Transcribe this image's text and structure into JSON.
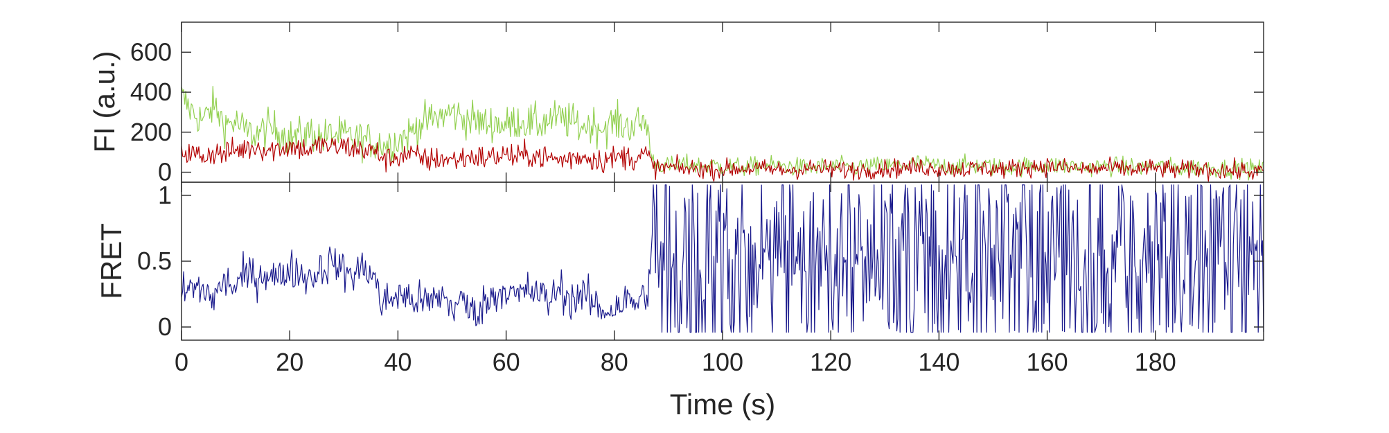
{
  "chart_data": [
    {
      "type": "line",
      "title": "",
      "xlabel": "",
      "ylabel": "FI (a.u.)",
      "xlim": [
        0,
        200
      ],
      "ylim": [
        -50,
        750
      ],
      "yticks": [
        0,
        200,
        400,
        600
      ],
      "xticks": [
        0,
        20,
        40,
        60,
        80,
        100,
        120,
        140,
        160,
        180
      ],
      "grid": false,
      "series": [
        {
          "color": "#92d050",
          "x": [
            0,
            2,
            4,
            6,
            8,
            10,
            12,
            14,
            16,
            18,
            20,
            22,
            24,
            26,
            28,
            30,
            32,
            34,
            36,
            38,
            40,
            42,
            44,
            46,
            48,
            50,
            52,
            54,
            56,
            58,
            60,
            62,
            64,
            66,
            68,
            70,
            72,
            74,
            76,
            78,
            80,
            82,
            84,
            86,
            87,
            88,
            90,
            92,
            94,
            96,
            98,
            100,
            104,
            108,
            112,
            116,
            120,
            124,
            128,
            132,
            136,
            140,
            144,
            148,
            152,
            156,
            160,
            164,
            168,
            172,
            176,
            180,
            184,
            188,
            192,
            196,
            200
          ],
          "values": [
            380,
            300,
            260,
            330,
            240,
            250,
            200,
            190,
            220,
            210,
            170,
            180,
            200,
            170,
            190,
            180,
            170,
            160,
            150,
            140,
            160,
            190,
            240,
            260,
            280,
            300,
            270,
            260,
            240,
            250,
            230,
            260,
            250,
            240,
            260,
            270,
            250,
            230,
            240,
            220,
            250,
            230,
            240,
            250,
            60,
            40,
            30,
            35,
            40,
            30,
            35,
            30,
            25,
            35,
            30,
            20,
            30,
            25,
            30,
            30,
            45,
            30,
            35,
            30,
            25,
            30,
            35,
            30,
            25,
            30,
            25,
            30,
            20,
            25,
            20,
            20,
            15
          ]
        },
        {
          "color": "#b30000",
          "x": [
            0,
            2,
            4,
            6,
            8,
            10,
            12,
            14,
            16,
            18,
            20,
            22,
            24,
            26,
            28,
            30,
            32,
            34,
            36,
            38,
            40,
            42,
            44,
            46,
            48,
            50,
            52,
            54,
            56,
            58,
            60,
            62,
            64,
            66,
            68,
            70,
            72,
            74,
            76,
            78,
            80,
            82,
            84,
            86,
            87,
            88,
            90,
            92,
            94,
            96,
            98,
            100,
            104,
            108,
            112,
            116,
            120,
            124,
            128,
            132,
            136,
            140,
            144,
            148,
            152,
            156,
            160,
            164,
            168,
            172,
            176,
            180,
            184,
            188,
            192,
            196,
            200
          ],
          "values": [
            110,
            90,
            80,
            100,
            90,
            110,
            120,
            130,
            110,
            120,
            130,
            120,
            110,
            140,
            120,
            130,
            120,
            110,
            100,
            60,
            80,
            90,
            70,
            60,
            70,
            60,
            70,
            80,
            70,
            80,
            90,
            70,
            90,
            80,
            70,
            60,
            70,
            80,
            70,
            60,
            70,
            80,
            70,
            90,
            30,
            20,
            25,
            20,
            15,
            20,
            10,
            15,
            20,
            15,
            10,
            20,
            15,
            10,
            15,
            20,
            25,
            20,
            15,
            20,
            15,
            25,
            30,
            20,
            15,
            20,
            15,
            20,
            10,
            15,
            10,
            5,
            0
          ]
        }
      ]
    },
    {
      "type": "line",
      "title": "",
      "xlabel": "Time (s)",
      "ylabel": "FRET",
      "xlim": [
        0,
        200
      ],
      "ylim": [
        -0.1,
        1.1
      ],
      "yticks": [
        0,
        0.5,
        1
      ],
      "ytick_labels": [
        "0",
        "0.5",
        "1"
      ],
      "xticks": [
        0,
        20,
        40,
        60,
        80,
        100,
        120,
        140,
        160,
        180
      ],
      "xtick_labels": [
        "0",
        "20",
        "40",
        "60",
        "80",
        "100",
        "120",
        "140",
        "160",
        "180"
      ],
      "grid": false,
      "series": [
        {
          "color": "#1a1a8c",
          "x": [
            0,
            2,
            4,
            6,
            8,
            10,
            12,
            14,
            16,
            18,
            20,
            22,
            24,
            26,
            28,
            30,
            32,
            34,
            36,
            37,
            38,
            40,
            42,
            44,
            46,
            48,
            50,
            52,
            54,
            56,
            58,
            60,
            62,
            64,
            66,
            68,
            70,
            72,
            74,
            76,
            78,
            80,
            82,
            84,
            86,
            87,
            88,
            90,
            92,
            94,
            96,
            98,
            100,
            104,
            108,
            112,
            116,
            120,
            124,
            128,
            132,
            136,
            140,
            144,
            148,
            152,
            156,
            160,
            164,
            168,
            172,
            176,
            180,
            184,
            188,
            192,
            196,
            200
          ],
          "values": [
            0.25,
            0.3,
            0.28,
            0.22,
            0.35,
            0.3,
            0.4,
            0.38,
            0.42,
            0.36,
            0.45,
            0.4,
            0.38,
            0.45,
            0.5,
            0.42,
            0.4,
            0.46,
            0.35,
            0.15,
            0.2,
            0.25,
            0.22,
            0.2,
            0.18,
            0.25,
            0.15,
            0.2,
            0.1,
            0.18,
            0.25,
            0.3,
            0.22,
            0.28,
            0.25,
            0.2,
            0.3,
            0.2,
            0.25,
            0.18,
            0.12,
            0.15,
            0.2,
            0.18,
            0.25,
            0.55,
            0.6,
            0.45,
            0.5,
            0.55,
            0.4,
            0.5,
            0.6,
            0.5,
            0.55,
            0.45,
            0.5,
            0.55,
            0.5,
            0.45,
            0.5,
            0.55,
            0.5,
            0.5,
            0.45,
            0.5,
            0.55,
            0.5,
            0.5,
            0.45,
            0.5,
            0.55,
            0.5,
            0.45,
            0.5,
            0.5,
            0.45,
            0.5
          ]
        }
      ]
    }
  ]
}
